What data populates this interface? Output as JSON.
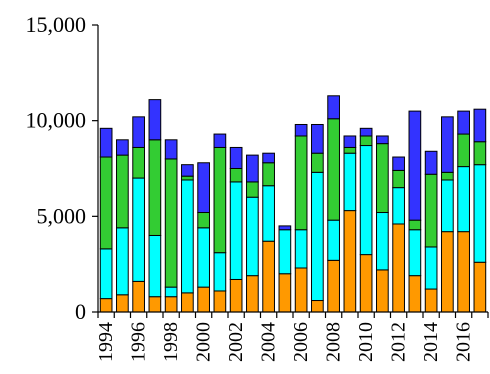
{
  "chart_data": {
    "type": "bar",
    "stacked": true,
    "title": "",
    "xlabel": "",
    "ylabel": "",
    "ylim": [
      0,
      15000
    ],
    "yticks": [
      0,
      5000,
      10000,
      15000
    ],
    "ytick_labels": [
      "0",
      "5,000",
      "10,000",
      "15,000"
    ],
    "grid": false,
    "legend": "none",
    "categories": [
      1994,
      1995,
      1996,
      1997,
      1998,
      1999,
      2000,
      2001,
      2002,
      2003,
      2004,
      2005,
      2006,
      2007,
      2008,
      2009,
      2010,
      2011,
      2012,
      2013,
      2014,
      2015,
      2016,
      2017
    ],
    "xtick_labels": [
      "1994",
      "",
      "1996",
      "",
      "1998",
      "",
      "2000",
      "",
      "2002",
      "",
      "2004",
      "",
      "2006",
      "",
      "2008",
      "",
      "2010",
      "",
      "2012",
      "",
      "2014",
      "",
      "2016",
      ""
    ],
    "series": [
      {
        "color": "#ff9900",
        "values": [
          700,
          900,
          1600,
          800,
          800,
          1000,
          1300,
          1100,
          1700,
          1900,
          3700,
          2000,
          2300,
          600,
          2700,
          5300,
          3000,
          2200,
          4600,
          1900,
          1200,
          4200,
          4200,
          2600
        ]
      },
      {
        "color": "#00ffff",
        "values": [
          2600,
          3500,
          5400,
          3200,
          500,
          5900,
          3100,
          2000,
          5100,
          4100,
          2900,
          2300,
          2000,
          6700,
          2100,
          3000,
          5700,
          3000,
          1900,
          2400,
          2200,
          2700,
          3400,
          5100
        ]
      },
      {
        "color": "#33cc33",
        "values": [
          4800,
          3800,
          1600,
          5000,
          6700,
          200,
          800,
          5500,
          700,
          800,
          1200,
          0,
          4900,
          1000,
          5300,
          300,
          500,
          3600,
          900,
          500,
          3800,
          400,
          1700,
          1200
        ]
      },
      {
        "color": "#3333ff",
        "values": [
          1500,
          800,
          1600,
          2100,
          1000,
          600,
          2600,
          700,
          1100,
          1400,
          500,
          200,
          600,
          1500,
          1200,
          600,
          400,
          400,
          700,
          5700,
          1200,
          2900,
          1200,
          1700
        ]
      }
    ]
  }
}
